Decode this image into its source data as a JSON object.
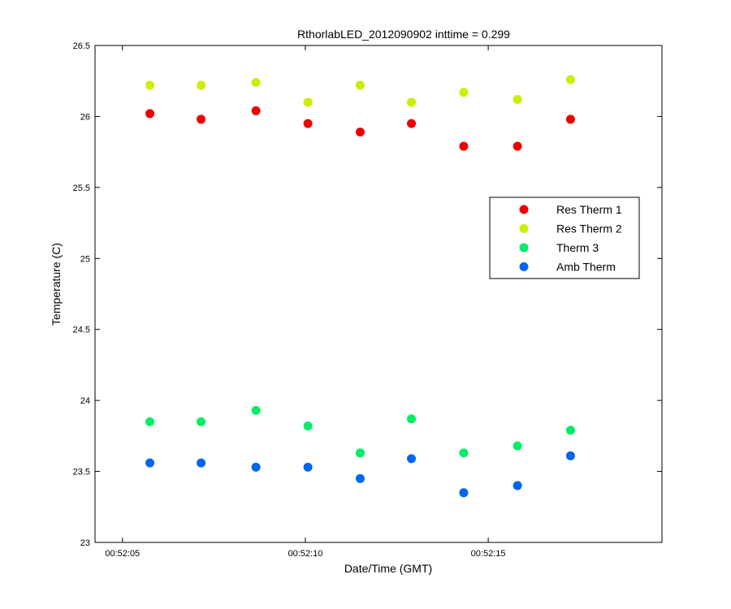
{
  "chart_data": {
    "type": "scatter",
    "title": "RthorlabLED_2012090902 inttime = 0.299",
    "xlabel": "Date/Time (GMT)",
    "ylabel": "Temperature (C)",
    "x_unit": "time of day (GMT)",
    "xlim": [
      "00:52:04.25",
      "00:52:19.75"
    ],
    "ylim": [
      23,
      26.5
    ],
    "x_ticks": [
      {
        "value": "00:52:05",
        "label": "00:52:05"
      },
      {
        "value": "00:52:10",
        "label": "00:52:10"
      },
      {
        "value": "00:52:15",
        "label": "00:52:15"
      }
    ],
    "y_ticks": [
      {
        "value": 23,
        "label": "23"
      },
      {
        "value": 23.5,
        "label": "23.5"
      },
      {
        "value": 24,
        "label": "24"
      },
      {
        "value": 24.5,
        "label": "24.5"
      },
      {
        "value": 25,
        "label": "25"
      },
      {
        "value": 25.5,
        "label": "25.5"
      },
      {
        "value": 26,
        "label": "26"
      },
      {
        "value": 26.5,
        "label": "26.5"
      }
    ],
    "x": [
      "00:52:05.75",
      "00:52:07.15",
      "00:52:08.65",
      "00:52:10.07",
      "00:52:11.50",
      "00:52:12.90",
      "00:52:14.33",
      "00:52:15.80",
      "00:52:17.25"
    ],
    "series": [
      {
        "name": "Res Therm 1",
        "color": "#ee0000",
        "values": [
          26.02,
          25.98,
          26.04,
          25.95,
          25.89,
          25.95,
          25.79,
          25.79,
          25.98
        ]
      },
      {
        "name": "Res Therm 2",
        "color": "#ccee00",
        "values": [
          26.22,
          26.22,
          26.24,
          26.1,
          26.22,
          26.1,
          26.17,
          26.12,
          26.26
        ]
      },
      {
        "name": "Therm 3",
        "color": "#00ee66",
        "values": [
          23.85,
          23.85,
          23.93,
          23.82,
          23.63,
          23.87,
          23.63,
          23.68,
          23.79
        ]
      },
      {
        "name": "Amb Therm",
        "color": "#0066ee",
        "values": [
          23.56,
          23.56,
          23.53,
          23.53,
          23.45,
          23.59,
          23.35,
          23.4,
          23.61
        ]
      }
    ],
    "grid": false,
    "legend_position": "right, middle-upper inside plot"
  }
}
